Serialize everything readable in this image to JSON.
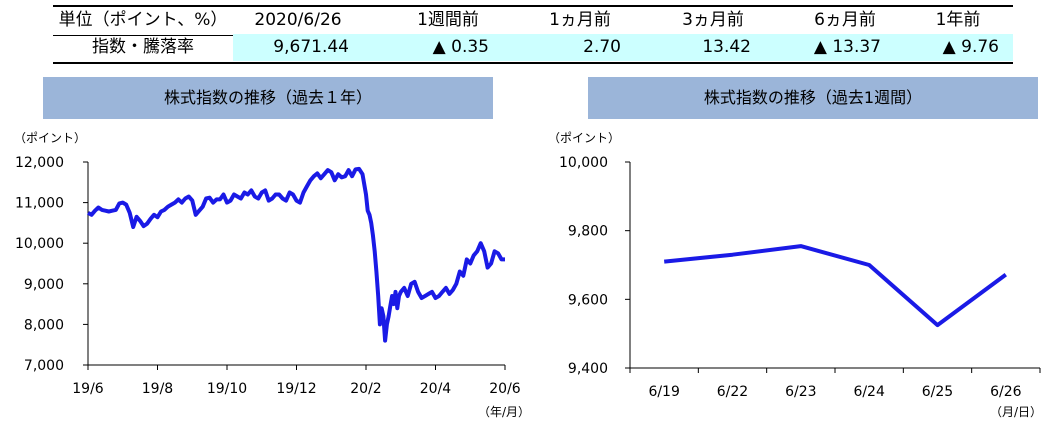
{
  "summary": {
    "header": [
      "単位（ポイント、%）",
      "2020/6/26",
      "1週間前",
      "1ヵ月前",
      "3ヵ月前",
      "6ヵ月前",
      "1年前"
    ],
    "row_label": "指数・騰落率",
    "values": [
      "9,671.44",
      "▲ 0.35",
      "2.70",
      "13.42",
      "▲ 13.37",
      "▲ 9.76"
    ]
  },
  "colors": {
    "line": "#1a1ae6",
    "title_bg": "#9bb5d9",
    "highlight": "#ccffff"
  },
  "chart_data": [
    {
      "type": "line",
      "title": "株式指数の推移（過去１年）",
      "ylabel": "（ポイント）",
      "xlabel": "（年/月）",
      "ylim": [
        7000,
        12000
      ],
      "yticks": [
        7000,
        8000,
        9000,
        10000,
        11000,
        12000
      ],
      "ytick_labels": [
        "7,000",
        "8,000",
        "9,000",
        "10,000",
        "11,000",
        "12,000"
      ],
      "xticks": [
        0,
        2,
        4,
        6,
        8,
        10,
        12
      ],
      "xtick_labels": [
        "19/6",
        "19/8",
        "19/10",
        "19/12",
        "20/2",
        "20/4",
        "20/6"
      ],
      "grid": false,
      "x": [
        0,
        0.1,
        0.2,
        0.3,
        0.4,
        0.5,
        0.6,
        0.7,
        0.8,
        0.9,
        1.0,
        1.1,
        1.2,
        1.3,
        1.4,
        1.5,
        1.6,
        1.7,
        1.8,
        1.9,
        2.0,
        2.1,
        2.2,
        2.3,
        2.4,
        2.5,
        2.6,
        2.7,
        2.8,
        2.9,
        3.0,
        3.1,
        3.2,
        3.3,
        3.4,
        3.5,
        3.6,
        3.7,
        3.8,
        3.9,
        4.0,
        4.1,
        4.2,
        4.3,
        4.4,
        4.5,
        4.6,
        4.7,
        4.8,
        4.9,
        5.0,
        5.1,
        5.2,
        5.3,
        5.4,
        5.5,
        5.6,
        5.7,
        5.8,
        5.9,
        6.0,
        6.1,
        6.2,
        6.3,
        6.4,
        6.5,
        6.6,
        6.7,
        6.8,
        6.9,
        7.0,
        7.1,
        7.2,
        7.3,
        7.4,
        7.5,
        7.6,
        7.7,
        7.8,
        7.9,
        8.0,
        8.05,
        8.1,
        8.15,
        8.2,
        8.25,
        8.3,
        8.35,
        8.4,
        8.45,
        8.5,
        8.55,
        8.6,
        8.65,
        8.7,
        8.75,
        8.8,
        8.85,
        8.9,
        8.95,
        9.0,
        9.1,
        9.2,
        9.3,
        9.4,
        9.5,
        9.6,
        9.7,
        9.8,
        9.9,
        10.0,
        10.1,
        10.2,
        10.3,
        10.4,
        10.5,
        10.6,
        10.7,
        10.8,
        10.9,
        11.0,
        11.1,
        11.2,
        11.3,
        11.4,
        11.5,
        11.6,
        11.7,
        11.8,
        11.9,
        12.0
      ],
      "y": [
        10750,
        10700,
        10800,
        10880,
        10820,
        10800,
        10780,
        10800,
        10820,
        10980,
        11000,
        10950,
        10750,
        10400,
        10650,
        10550,
        10420,
        10480,
        10600,
        10700,
        10640,
        10780,
        10820,
        10900,
        10950,
        11000,
        11080,
        11000,
        11100,
        11150,
        11050,
        10700,
        10800,
        10900,
        11100,
        11120,
        11000,
        11080,
        11080,
        11200,
        11000,
        11050,
        11200,
        11150,
        11100,
        11250,
        11200,
        11300,
        11150,
        11100,
        11250,
        11300,
        11050,
        11100,
        11200,
        11200,
        11100,
        11050,
        11250,
        11200,
        11050,
        11000,
        11250,
        11400,
        11550,
        11650,
        11720,
        11600,
        11700,
        11800,
        11750,
        11550,
        11700,
        11620,
        11650,
        11800,
        11650,
        11820,
        11830,
        11700,
        11200,
        10800,
        10700,
        10500,
        10200,
        9800,
        9300,
        8700,
        8000,
        8400,
        8200,
        7600,
        8000,
        8200,
        8450,
        8700,
        8500,
        8800,
        8400,
        8700,
        8800,
        8900,
        8700,
        9000,
        9050,
        8800,
        8650,
        8700,
        8750,
        8800,
        8650,
        8700,
        8800,
        8900,
        8750,
        8850,
        9000,
        9300,
        9200,
        9600,
        9500,
        9700,
        9800,
        10000,
        9800,
        9400,
        9500,
        9800,
        9750,
        9600,
        9600
      ]
    },
    {
      "type": "line",
      "title": "株式指数の推移（過去1週間）",
      "ylabel": "（ポイント）",
      "xlabel": "（月/日）",
      "ylim": [
        9400,
        10000
      ],
      "yticks": [
        9400,
        9600,
        9800,
        10000
      ],
      "ytick_labels": [
        "9,400",
        "9,600",
        "9,800",
        "10,000"
      ],
      "categories": [
        "6/19",
        "6/22",
        "6/23",
        "6/24",
        "6/25",
        "6/26"
      ],
      "values": [
        9710,
        9730,
        9755,
        9700,
        9525,
        9672
      ],
      "grid": false
    }
  ]
}
